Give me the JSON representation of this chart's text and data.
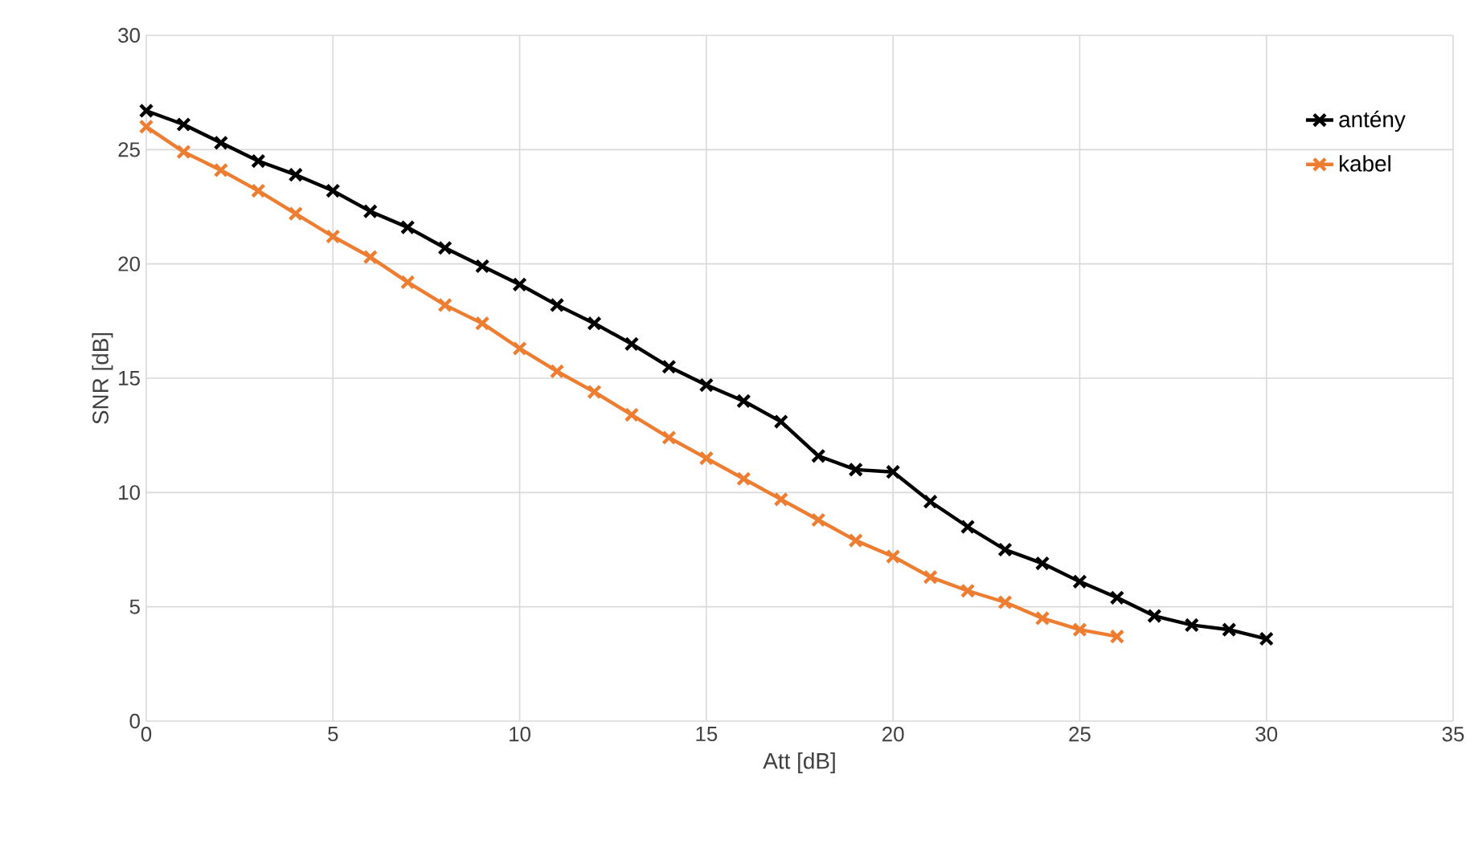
{
  "chart_data": {
    "type": "line",
    "xlabel": "Att [dB]",
    "ylabel": "SNR [dB]",
    "xlim": [
      0,
      35
    ],
    "ylim": [
      0,
      30
    ],
    "xticks": [
      0,
      5,
      10,
      15,
      20,
      25,
      30,
      35
    ],
    "yticks": [
      0,
      5,
      10,
      15,
      20,
      25,
      30
    ],
    "grid": true,
    "legend": "top right",
    "marker": "cross",
    "line_style": "solid",
    "series": [
      {
        "name": "antény",
        "color": "#000000",
        "x": [
          0,
          1,
          2,
          3,
          4,
          5,
          6,
          7,
          8,
          9,
          10,
          11,
          12,
          13,
          14,
          15,
          16,
          17,
          18,
          19,
          20,
          21,
          22,
          23,
          24,
          25,
          26,
          27,
          28,
          29,
          30
        ],
        "values": [
          26.7,
          26.1,
          25.3,
          24.5,
          23.9,
          23.2,
          22.3,
          21.6,
          20.7,
          19.9,
          19.1,
          18.2,
          17.4,
          16.5,
          15.5,
          14.7,
          14.0,
          13.1,
          11.6,
          11.0,
          10.9,
          9.6,
          8.5,
          7.5,
          6.9,
          6.1,
          5.4,
          4.6,
          4.2,
          4.0,
          3.6
        ]
      },
      {
        "name": "kabel",
        "color": "#ed7d31",
        "x": [
          0,
          1,
          2,
          3,
          4,
          5,
          6,
          7,
          8,
          9,
          10,
          11,
          12,
          13,
          14,
          15,
          16,
          17,
          18,
          19,
          20,
          21,
          22,
          23,
          24,
          25,
          26
        ],
        "values": [
          26.0,
          24.9,
          24.1,
          23.2,
          22.2,
          21.2,
          20.3,
          19.2,
          18.2,
          17.4,
          16.3,
          15.3,
          14.4,
          13.4,
          12.4,
          11.5,
          10.6,
          9.7,
          8.8,
          7.9,
          7.2,
          6.3,
          5.7,
          5.2,
          4.5,
          4.0,
          3.7
        ]
      }
    ]
  }
}
